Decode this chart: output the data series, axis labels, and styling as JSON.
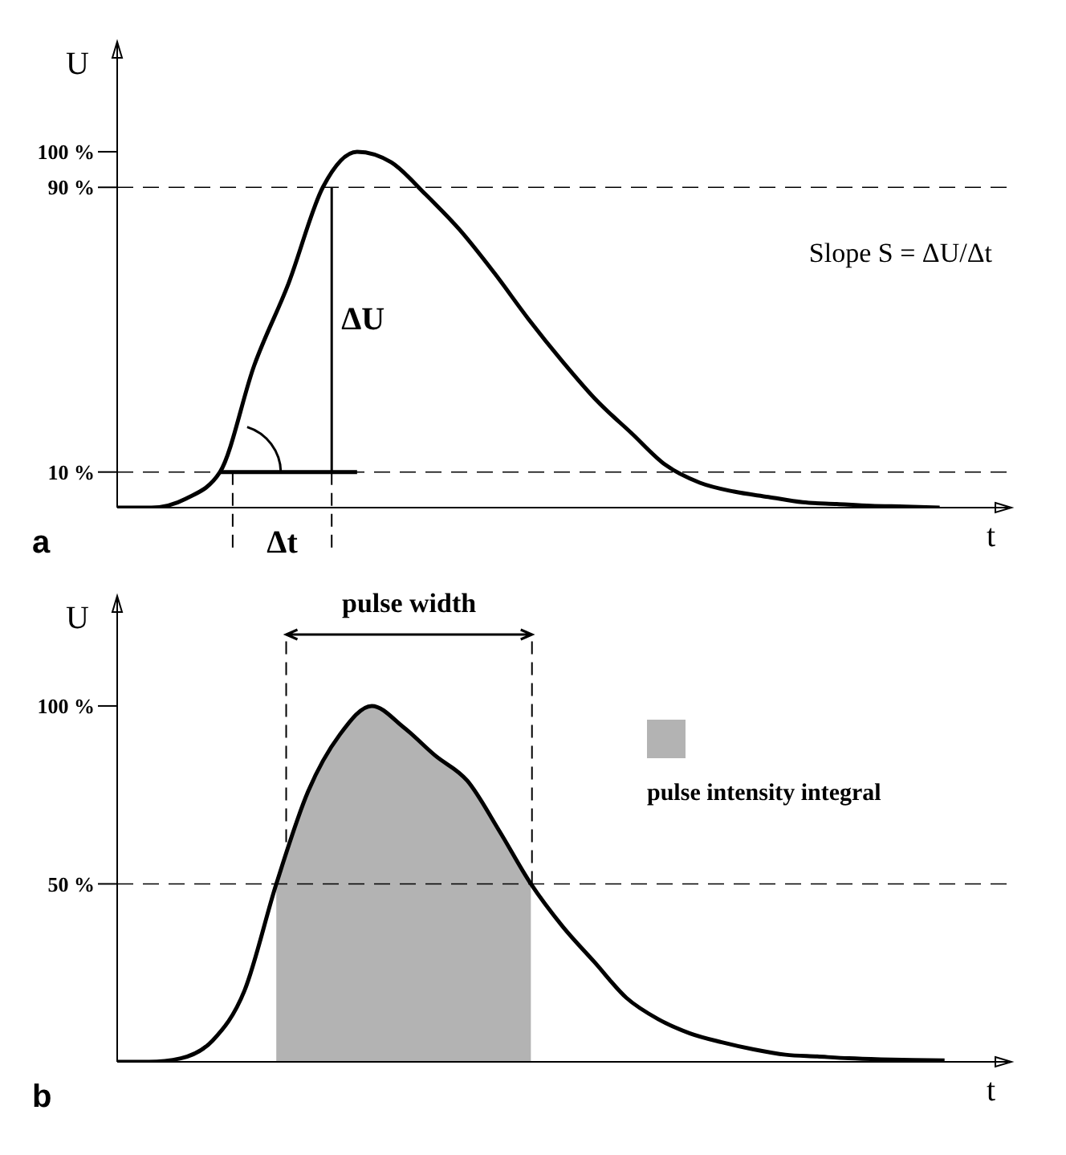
{
  "chart_data": [
    {
      "type": "line",
      "xlabel": "t",
      "ylabel": "U",
      "categories": [
        null,
        null,
        null,
        null,
        null,
        null,
        null,
        null,
        null,
        null,
        null,
        null,
        null,
        null,
        null,
        null,
        null,
        null,
        null,
        null,
        null,
        null,
        null,
        null,
        null,
        null,
        null
      ],
      "series": [
        {
          "color": "#000000",
          "values": [
            0,
            0,
            2.5,
            10,
            40,
            63,
            90,
            100,
            97,
            88,
            78,
            66,
            53,
            41,
            30,
            21,
            12,
            7,
            4.5,
            3,
            1.5,
            1,
            0.5,
            0.3,
            0,
            null,
            null
          ]
        },
        {
          "color": "#000000",
          "values": [
            null,
            null,
            null,
            10,
            10,
            10,
            10,
            10,
            null,
            null,
            null,
            null,
            null,
            null,
            null,
            null,
            null,
            null,
            null,
            null,
            null,
            null,
            null,
            null,
            null,
            null,
            null
          ]
        }
      ],
      "ylim": [
        0,
        130
      ],
      "yticks": [
        {
          "value": 10,
          "label": "10 %"
        },
        {
          "value": 90,
          "label": "90 %"
        },
        {
          "value": 100,
          "label": "100 %"
        }
      ],
      "ref_lines": [
        {
          "axis": "y",
          "value": 10,
          "line_style": "dashed"
        },
        {
          "axis": "y",
          "value": 90,
          "line_style": "dashed"
        }
      ],
      "annotations": [
        "a",
        "ΔU",
        "Δt",
        "Slope S = ΔU/Δt"
      ],
      "tick_labels": "y",
      "marker": "none",
      "line_style": "solid",
      "grid": false,
      "legend": false
    },
    {
      "type": "line",
      "xlabel": "t",
      "ylabel": "U",
      "categories": [
        null,
        null,
        null,
        null,
        null,
        null,
        null,
        null,
        null,
        null,
        null,
        null,
        null,
        null,
        null,
        null,
        null,
        null,
        null,
        null,
        null,
        null,
        null,
        null,
        null,
        null,
        null,
        null,
        null
      ],
      "series": [
        {
          "type": "area",
          "name": "pulse intensity integral",
          "color": "#b3b3b3",
          "values": [
            null,
            null,
            null,
            null,
            null,
            50,
            76,
            92,
            100,
            94,
            86,
            79,
            65,
            50,
            null,
            null,
            null,
            null,
            null,
            null,
            null,
            null,
            null,
            null,
            null,
            null,
            null,
            null,
            null
          ]
        },
        {
          "color": "#000000",
          "values": [
            0,
            0,
            1,
            6,
            20,
            50,
            76,
            92,
            100,
            94,
            86,
            79,
            65,
            50,
            38,
            28,
            18,
            12,
            8,
            5.5,
            3.5,
            2,
            1.5,
            1,
            0.7,
            0.5,
            0.4,
            null,
            null
          ]
        }
      ],
      "ylim": [
        0,
        130
      ],
      "yticks": [
        {
          "value": 50,
          "label": "50 %"
        },
        {
          "value": 100,
          "label": "100 %"
        }
      ],
      "ref_lines": [
        {
          "axis": "y",
          "value": 50,
          "line_style": "dashed"
        }
      ],
      "annotations": [
        "b",
        "pulse width"
      ],
      "tick_labels": "y",
      "marker": "none",
      "line_style": "solid",
      "grid": false,
      "legend": "right"
    }
  ]
}
